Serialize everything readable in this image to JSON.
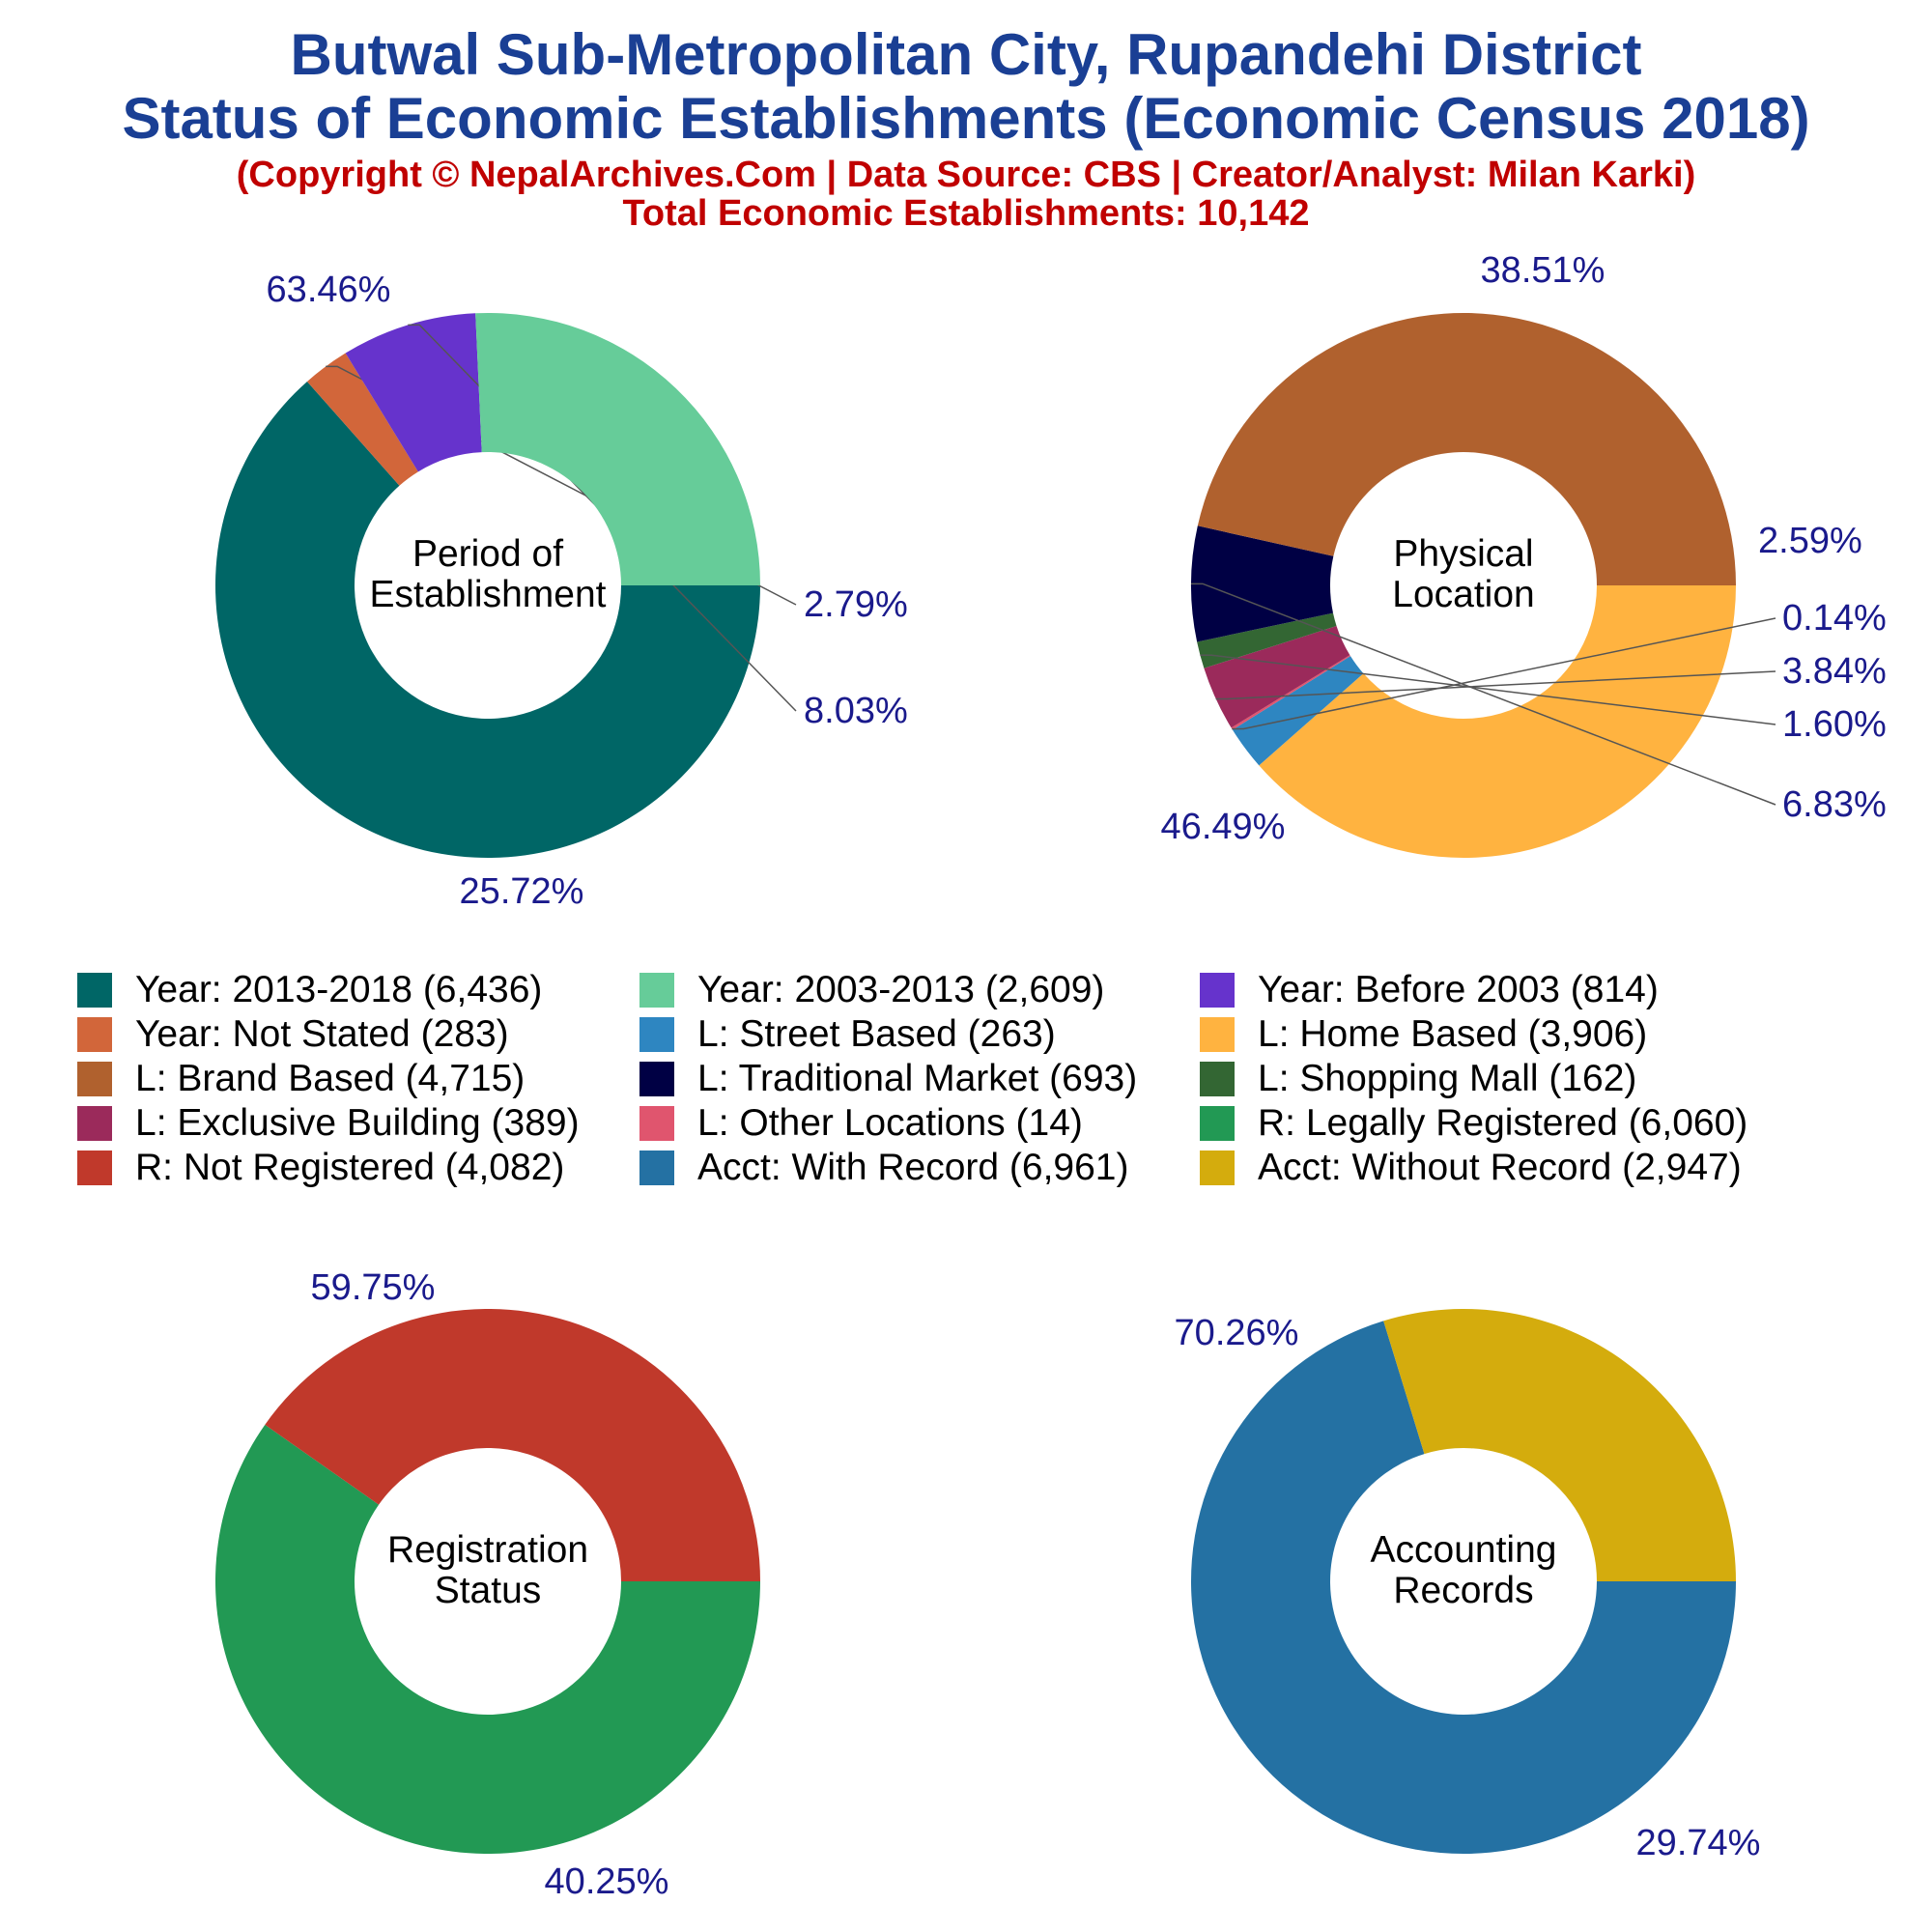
{
  "titles": {
    "line1": "Butwal Sub-Metropolitan City, Rupandehi District",
    "line2": "Status of Economic Establishments (Economic Census 2018)",
    "sub1": "(Copyright © NepalArchives.Com | Data Source: CBS | Creator/Analyst: Milan Karki)",
    "sub2": "Total Economic Establishments: 10,142"
  },
  "colors": {
    "title": "#1a3f94",
    "subtitle": "#c00000",
    "pct_label": "#1a1a8c"
  },
  "chart_data": [
    {
      "type": "pie",
      "center_label": [
        "Period of",
        "Establishment"
      ],
      "slices": [
        {
          "label": "Year: 2013-2018",
          "value": 6436,
          "pct": "63.46%",
          "color": "#006666"
        },
        {
          "label": "Year: Not Stated",
          "value": 283,
          "pct": "2.79%",
          "color": "#d2663a"
        },
        {
          "label": "Year: Before 2003",
          "value": 814,
          "pct": "8.03%",
          "color": "#6633cc"
        },
        {
          "label": "Year: 2003-2013",
          "value": 2609,
          "pct": "25.72%",
          "color": "#66cc99"
        }
      ]
    },
    {
      "type": "pie",
      "center_label": [
        "Physical",
        "Location"
      ],
      "slices": [
        {
          "label": "L: Home Based",
          "value": 3906,
          "pct": "38.51%",
          "color": "#ffb340"
        },
        {
          "label": "L: Street Based",
          "value": 263,
          "pct": "2.59%",
          "color": "#2e86c1"
        },
        {
          "label": "L: Other Locations",
          "value": 14,
          "pct": "0.14%",
          "color": "#e0556e"
        },
        {
          "label": "L: Exclusive Building",
          "value": 389,
          "pct": "3.84%",
          "color": "#9b2a5b"
        },
        {
          "label": "L: Shopping Mall",
          "value": 162,
          "pct": "1.60%",
          "color": "#336633"
        },
        {
          "label": "L: Traditional Market",
          "value": 693,
          "pct": "6.83%",
          "color": "#000044"
        },
        {
          "label": "L: Brand Based",
          "value": 4715,
          "pct": "46.49%",
          "color": "#b0612e"
        }
      ]
    },
    {
      "type": "pie",
      "center_label": [
        "Registration",
        "Status"
      ],
      "slices": [
        {
          "label": "R: Legally Registered",
          "value": 6060,
          "pct": "59.75%",
          "color": "#229954"
        },
        {
          "label": "R: Not Registered",
          "value": 4082,
          "pct": "40.25%",
          "color": "#c0392b"
        }
      ]
    },
    {
      "type": "pie",
      "center_label": [
        "Accounting",
        "Records"
      ],
      "slices": [
        {
          "label": "Acct: With Record",
          "value": 6961,
          "pct": "70.26%",
          "color": "#2471a3"
        },
        {
          "label": "Acct: Without Record",
          "value": 2947,
          "pct": "29.74%",
          "color": "#d4ac0d"
        }
      ]
    }
  ],
  "legend": [
    {
      "text": "Year: 2013-2018 (6,436)",
      "color": "#006666"
    },
    {
      "text": "Year: 2003-2013 (2,609)",
      "color": "#66cc99"
    },
    {
      "text": "Year: Before 2003 (814)",
      "color": "#6633cc"
    },
    {
      "text": "Year: Not Stated (283)",
      "color": "#d2663a"
    },
    {
      "text": "L: Street Based (263)",
      "color": "#2e86c1"
    },
    {
      "text": "L: Home Based (3,906)",
      "color": "#ffb340"
    },
    {
      "text": "L: Brand Based (4,715)",
      "color": "#b0612e"
    },
    {
      "text": "L: Traditional Market (693)",
      "color": "#000044"
    },
    {
      "text": "L: Shopping Mall (162)",
      "color": "#336633"
    },
    {
      "text": "L: Exclusive Building (389)",
      "color": "#9b2a5b"
    },
    {
      "text": "L: Other Locations (14)",
      "color": "#e0556e"
    },
    {
      "text": "R: Legally Registered (6,060)",
      "color": "#229954"
    },
    {
      "text": "R: Not Registered (4,082)",
      "color": "#c0392b"
    },
    {
      "text": "Acct: With Record (6,961)",
      "color": "#2471a3"
    },
    {
      "text": "Acct: Without Record (2,947)",
      "color": "#d4ac0d"
    }
  ]
}
